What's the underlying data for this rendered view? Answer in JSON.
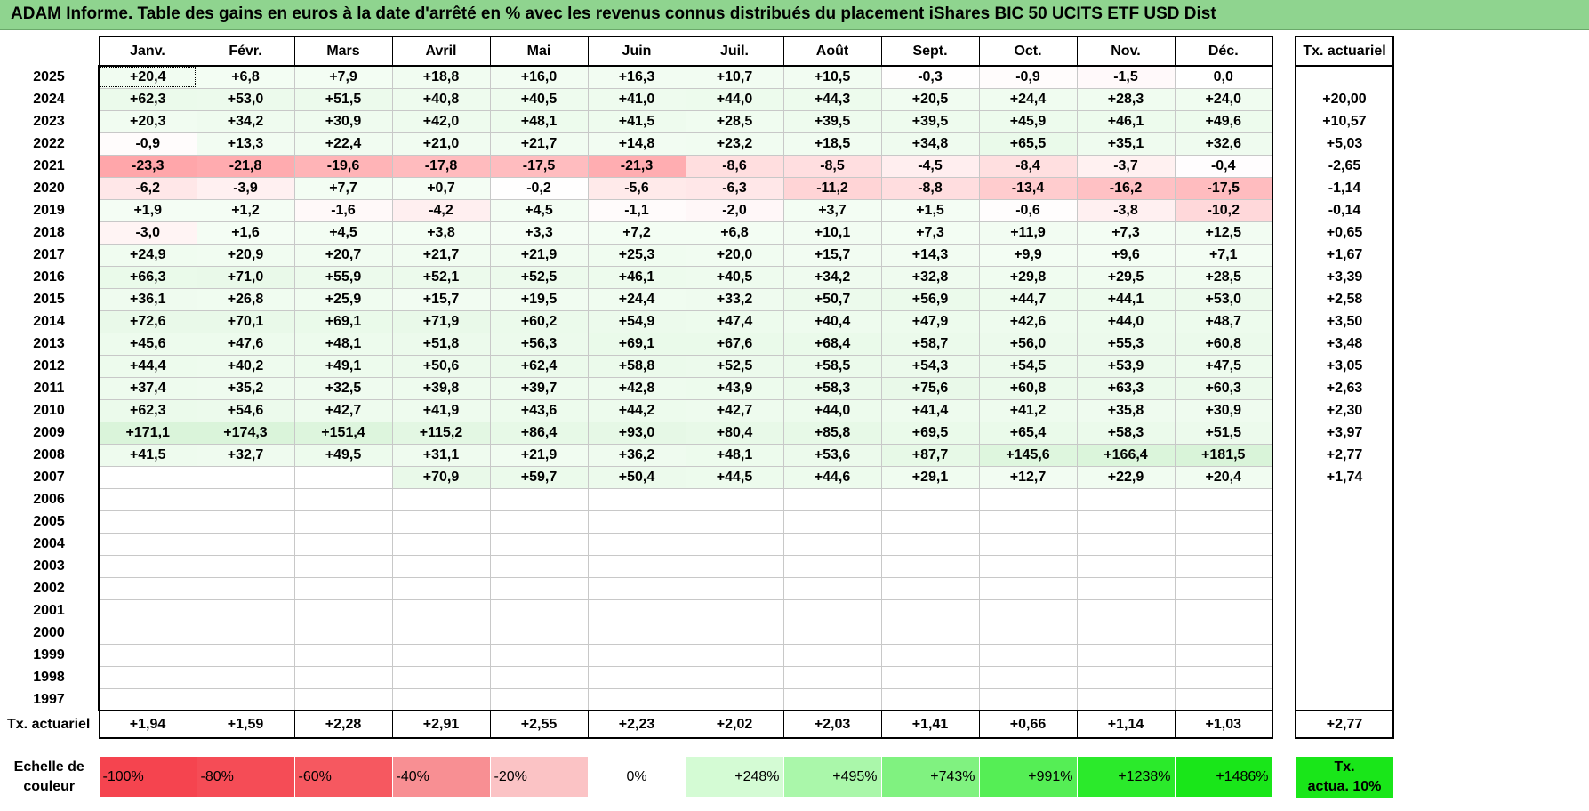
{
  "title": "ADAM Informe. Table des gains en euros à la date d'arrêté en % avec les revenus connus distribués du placement iShares BIC 50 UCITS ETF USD Dist",
  "months": [
    "Janv.",
    "Févr.",
    "Mars",
    "Avril",
    "Mai",
    "Juin",
    "Juil.",
    "Août",
    "Sept.",
    "Oct.",
    "Nov.",
    "Déc."
  ],
  "tx_header": "Tx. actuariel",
  "rows": [
    {
      "year": "2025",
      "values": [
        "+20,4",
        "+6,8",
        "+7,9",
        "+18,8",
        "+16,0",
        "+16,3",
        "+10,7",
        "+10,5",
        "-0,3",
        "-0,9",
        "-1,5",
        "0,0"
      ],
      "tx": ""
    },
    {
      "year": "2024",
      "values": [
        "+62,3",
        "+53,0",
        "+51,5",
        "+40,8",
        "+40,5",
        "+41,0",
        "+44,0",
        "+44,3",
        "+20,5",
        "+24,4",
        "+28,3",
        "+24,0"
      ],
      "tx": "+20,00"
    },
    {
      "year": "2023",
      "values": [
        "+20,3",
        "+34,2",
        "+30,9",
        "+42,0",
        "+48,1",
        "+41,5",
        "+28,5",
        "+39,5",
        "+39,5",
        "+45,9",
        "+46,1",
        "+49,6"
      ],
      "tx": "+10,57"
    },
    {
      "year": "2022",
      "values": [
        "-0,9",
        "+13,3",
        "+22,4",
        "+21,0",
        "+21,7",
        "+14,8",
        "+23,2",
        "+18,5",
        "+34,8",
        "+65,5",
        "+35,1",
        "+32,6"
      ],
      "tx": "+5,03"
    },
    {
      "year": "2021",
      "values": [
        "-23,3",
        "-21,8",
        "-19,6",
        "-17,8",
        "-17,5",
        "-21,3",
        "-8,6",
        "-8,5",
        "-4,5",
        "-8,4",
        "-3,7",
        "-0,4"
      ],
      "tx": "-2,65"
    },
    {
      "year": "2020",
      "values": [
        "-6,2",
        "-3,9",
        "+7,7",
        "+0,7",
        "-0,2",
        "-5,6",
        "-6,3",
        "-11,2",
        "-8,8",
        "-13,4",
        "-16,2",
        "-17,5"
      ],
      "tx": "-1,14"
    },
    {
      "year": "2019",
      "values": [
        "+1,9",
        "+1,2",
        "-1,6",
        "-4,2",
        "+4,5",
        "-1,1",
        "-2,0",
        "+3,7",
        "+1,5",
        "-0,6",
        "-3,8",
        "-10,2"
      ],
      "tx": "-0,14"
    },
    {
      "year": "2018",
      "values": [
        "-3,0",
        "+1,6",
        "+4,5",
        "+3,8",
        "+3,3",
        "+7,2",
        "+6,8",
        "+10,1",
        "+7,3",
        "+11,9",
        "+7,3",
        "+12,5"
      ],
      "tx": "+0,65"
    },
    {
      "year": "2017",
      "values": [
        "+24,9",
        "+20,9",
        "+20,7",
        "+21,7",
        "+21,9",
        "+25,3",
        "+20,0",
        "+15,7",
        "+14,3",
        "+9,9",
        "+9,6",
        "+7,1"
      ],
      "tx": "+1,67"
    },
    {
      "year": "2016",
      "values": [
        "+66,3",
        "+71,0",
        "+55,9",
        "+52,1",
        "+52,5",
        "+46,1",
        "+40,5",
        "+34,2",
        "+32,8",
        "+29,8",
        "+29,5",
        "+28,5"
      ],
      "tx": "+3,39"
    },
    {
      "year": "2015",
      "values": [
        "+36,1",
        "+26,8",
        "+25,9",
        "+15,7",
        "+19,5",
        "+24,4",
        "+33,2",
        "+50,7",
        "+56,9",
        "+44,7",
        "+44,1",
        "+53,0"
      ],
      "tx": "+2,58"
    },
    {
      "year": "2014",
      "values": [
        "+72,6",
        "+70,1",
        "+69,1",
        "+71,9",
        "+60,2",
        "+54,9",
        "+47,4",
        "+40,4",
        "+47,9",
        "+42,6",
        "+44,0",
        "+48,7"
      ],
      "tx": "+3,50"
    },
    {
      "year": "2013",
      "values": [
        "+45,6",
        "+47,6",
        "+48,1",
        "+51,8",
        "+56,3",
        "+69,1",
        "+67,6",
        "+68,4",
        "+58,7",
        "+56,0",
        "+55,3",
        "+60,8"
      ],
      "tx": "+3,48"
    },
    {
      "year": "2012",
      "values": [
        "+44,4",
        "+40,2",
        "+49,1",
        "+50,6",
        "+62,4",
        "+58,8",
        "+52,5",
        "+58,5",
        "+54,3",
        "+54,5",
        "+53,9",
        "+47,5"
      ],
      "tx": "+3,05"
    },
    {
      "year": "2011",
      "values": [
        "+37,4",
        "+35,2",
        "+32,5",
        "+39,8",
        "+39,7",
        "+42,8",
        "+43,9",
        "+58,3",
        "+75,6",
        "+60,8",
        "+63,3",
        "+60,3"
      ],
      "tx": "+2,63"
    },
    {
      "year": "2010",
      "values": [
        "+62,3",
        "+54,6",
        "+42,7",
        "+41,9",
        "+43,6",
        "+44,2",
        "+42,7",
        "+44,0",
        "+41,4",
        "+41,2",
        "+35,8",
        "+30,9"
      ],
      "tx": "+2,30"
    },
    {
      "year": "2009",
      "values": [
        "+171,1",
        "+174,3",
        "+151,4",
        "+115,2",
        "+86,4",
        "+93,0",
        "+80,4",
        "+85,8",
        "+69,5",
        "+65,4",
        "+58,3",
        "+51,5"
      ],
      "tx": "+3,97"
    },
    {
      "year": "2008",
      "values": [
        "+41,5",
        "+32,7",
        "+49,5",
        "+31,1",
        "+21,9",
        "+36,2",
        "+48,1",
        "+53,6",
        "+87,7",
        "+145,6",
        "+166,4",
        "+181,5"
      ],
      "tx": "+2,77"
    },
    {
      "year": "2007",
      "values": [
        "",
        "",
        "",
        "+70,9",
        "+59,7",
        "+50,4",
        "+44,5",
        "+44,6",
        "+29,1",
        "+12,7",
        "+22,9",
        "+20,4"
      ],
      "tx": "+1,74"
    },
    {
      "year": "2006",
      "values": [
        "",
        "",
        "",
        "",
        "",
        "",
        "",
        "",
        "",
        "",
        "",
        ""
      ],
      "tx": ""
    },
    {
      "year": "2005",
      "values": [
        "",
        "",
        "",
        "",
        "",
        "",
        "",
        "",
        "",
        "",
        "",
        ""
      ],
      "tx": ""
    },
    {
      "year": "2004",
      "values": [
        "",
        "",
        "",
        "",
        "",
        "",
        "",
        "",
        "",
        "",
        "",
        ""
      ],
      "tx": ""
    },
    {
      "year": "2003",
      "values": [
        "",
        "",
        "",
        "",
        "",
        "",
        "",
        "",
        "",
        "",
        "",
        ""
      ],
      "tx": ""
    },
    {
      "year": "2002",
      "values": [
        "",
        "",
        "",
        "",
        "",
        "",
        "",
        "",
        "",
        "",
        "",
        ""
      ],
      "tx": ""
    },
    {
      "year": "2001",
      "values": [
        "",
        "",
        "",
        "",
        "",
        "",
        "",
        "",
        "",
        "",
        "",
        ""
      ],
      "tx": ""
    },
    {
      "year": "2000",
      "values": [
        "",
        "",
        "",
        "",
        "",
        "",
        "",
        "",
        "",
        "",
        "",
        ""
      ],
      "tx": ""
    },
    {
      "year": "1999",
      "values": [
        "",
        "",
        "",
        "",
        "",
        "",
        "",
        "",
        "",
        "",
        "",
        ""
      ],
      "tx": ""
    },
    {
      "year": "1998",
      "values": [
        "",
        "",
        "",
        "",
        "",
        "",
        "",
        "",
        "",
        "",
        "",
        ""
      ],
      "tx": ""
    },
    {
      "year": "1997",
      "values": [
        "",
        "",
        "",
        "",
        "",
        "",
        "",
        "",
        "",
        "",
        "",
        ""
      ],
      "tx": ""
    }
  ],
  "footer": {
    "label": "Tx. actuariel",
    "values": [
      "+1,94",
      "+1,59",
      "+2,28",
      "+2,91",
      "+2,55",
      "+2,23",
      "+2,02",
      "+2,03",
      "+1,41",
      "+0,66",
      "+1,14",
      "+1,03"
    ],
    "total": "+2,77"
  },
  "scale": {
    "label_line1": "Echelle de",
    "label_line2": "couleur",
    "items": [
      {
        "label": "-100%",
        "color": "#f5444f"
      },
      {
        "label": "-80%",
        "color": "#f54c56"
      },
      {
        "label": "-60%",
        "color": "#f65860"
      },
      {
        "label": "-40%",
        "color": "#f88f93"
      },
      {
        "label": "-20%",
        "color": "#fbc3c5"
      },
      {
        "label": "0%",
        "color": "#ffffff"
      },
      {
        "label": "+248%",
        "color": "#d4fbd4"
      },
      {
        "label": "+495%",
        "color": "#aaf7aa"
      },
      {
        "label": "+743%",
        "color": "#80f280"
      },
      {
        "label": "+991%",
        "color": "#55ee55"
      },
      {
        "label": "+1238%",
        "color": "#2bea2b"
      },
      {
        "label": "+1486%",
        "color": "#19e619"
      }
    ],
    "tx_line1": "Tx.",
    "tx_line2": "actua. 10%",
    "tx_color": "#19e619"
  },
  "colors": {
    "title_bg": "#8fd48f",
    "neg_max": "#f5444f",
    "pos_max": "#19e619"
  }
}
